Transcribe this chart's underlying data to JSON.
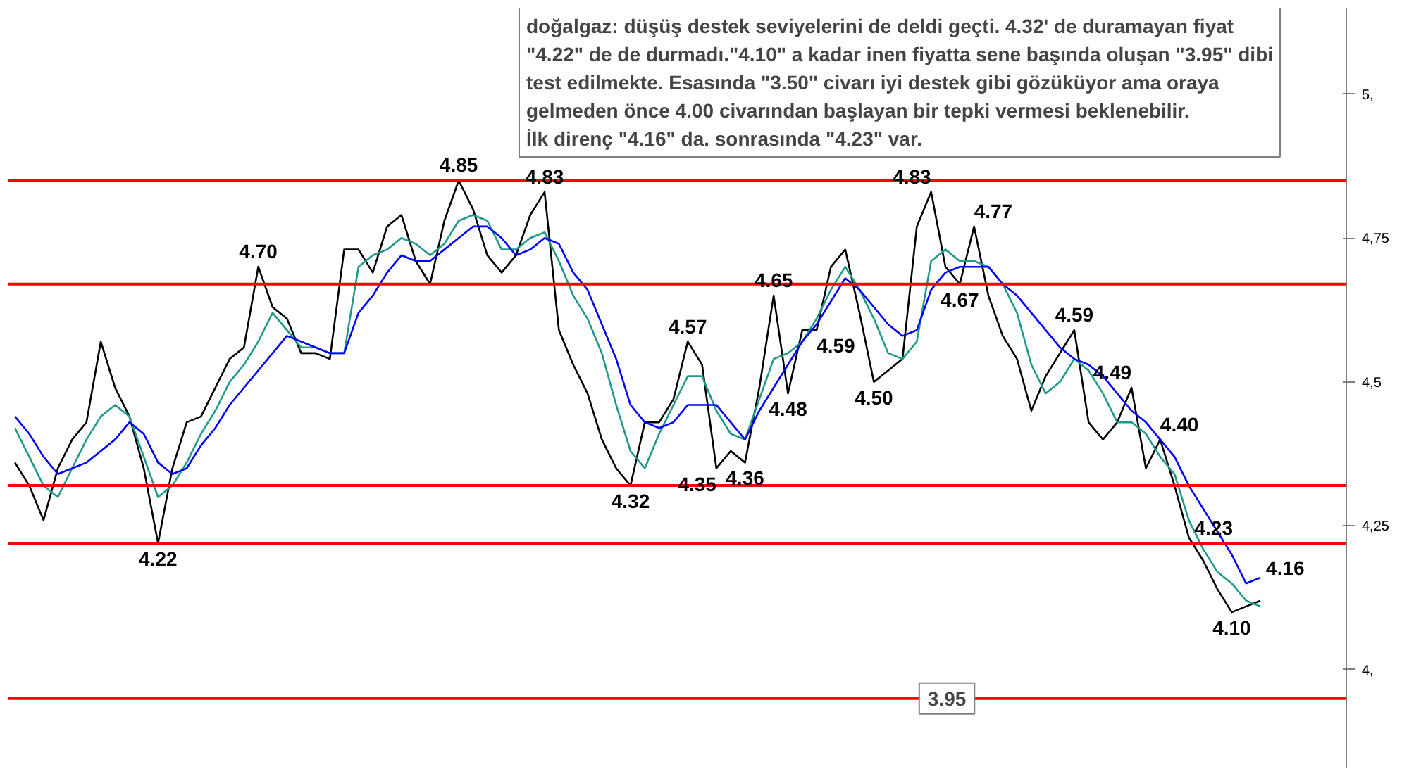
{
  "chart_data": {
    "type": "line",
    "categories": [
      null,
      null,
      null,
      null,
      null,
      null,
      null,
      null,
      null,
      null,
      null,
      null,
      null,
      null,
      null,
      null,
      null,
      null,
      null,
      null,
      null,
      null,
      null,
      null,
      null,
      null,
      null,
      null,
      null,
      null,
      null,
      null,
      null,
      null,
      null,
      null,
      null,
      null,
      null,
      null,
      null,
      null,
      null,
      null,
      null,
      null,
      null,
      null,
      null,
      null,
      null,
      null,
      null,
      null,
      null,
      null,
      null,
      null,
      null,
      null,
      null,
      null,
      null,
      null,
      null,
      null,
      null,
      null,
      null,
      null,
      null,
      null,
      null,
      null,
      null,
      null,
      null,
      null,
      null,
      null,
      null,
      null,
      null,
      null,
      null,
      null,
      null,
      null
    ],
    "series": [
      {
        "color": "#000000",
        "values": [
          4.36,
          4.32,
          4.26,
          4.35,
          4.4,
          4.43,
          4.57,
          4.49,
          4.44,
          4.35,
          4.22,
          4.35,
          4.43,
          4.44,
          4.49,
          4.54,
          4.56,
          4.7,
          4.63,
          4.61,
          4.55,
          4.55,
          4.54,
          4.73,
          4.73,
          4.69,
          4.77,
          4.79,
          4.71,
          4.67,
          4.78,
          4.85,
          4.8,
          4.72,
          4.69,
          4.72,
          4.79,
          4.83,
          4.59,
          4.53,
          4.48,
          4.4,
          4.35,
          4.32,
          4.43,
          4.43,
          4.47,
          4.57,
          4.53,
          4.35,
          4.38,
          4.36,
          4.49,
          4.65,
          4.48,
          4.59,
          4.59,
          4.7,
          4.73,
          4.62,
          4.5,
          4.52,
          4.54,
          4.77,
          4.83,
          4.7,
          4.67,
          4.77,
          4.65,
          4.58,
          4.54,
          4.45,
          4.51,
          4.55,
          4.59,
          4.43,
          4.4,
          4.43,
          4.49,
          4.35,
          4.4,
          4.32,
          4.23,
          4.19,
          4.14,
          4.1,
          4.11,
          4.12
        ],
        "value_labels": [
          null,
          null,
          null,
          null,
          null,
          null,
          null,
          null,
          null,
          null,
          "4.22",
          null,
          null,
          null,
          null,
          null,
          null,
          "4.70",
          null,
          null,
          null,
          null,
          null,
          null,
          null,
          null,
          null,
          null,
          null,
          null,
          null,
          "4.85",
          null,
          null,
          null,
          null,
          null,
          "4.83",
          null,
          null,
          null,
          null,
          null,
          "4.32",
          null,
          null,
          null,
          "4.57",
          null,
          "4.35",
          null,
          "4.36",
          null,
          "4.65",
          "4.48",
          null,
          "4.59",
          null,
          null,
          null,
          "4.50",
          null,
          null,
          null,
          "4.83",
          null,
          "4.67",
          "4.77",
          null,
          null,
          null,
          null,
          null,
          null,
          "4.59",
          null,
          null,
          null,
          "4.49",
          null,
          "4.40",
          null,
          "4.23",
          null,
          null,
          "4.10",
          null,
          null
        ]
      },
      {
        "color": "#1f9a8a",
        "values": [
          4.42,
          4.37,
          4.32,
          4.3,
          4.35,
          4.4,
          4.44,
          4.46,
          4.44,
          4.37,
          4.3,
          4.32,
          4.36,
          4.41,
          4.45,
          4.5,
          4.53,
          4.57,
          4.62,
          4.59,
          4.56,
          4.56,
          4.55,
          4.55,
          4.7,
          4.72,
          4.73,
          4.75,
          4.74,
          4.72,
          4.74,
          4.78,
          4.79,
          4.78,
          4.73,
          4.73,
          4.75,
          4.76,
          4.71,
          4.65,
          4.61,
          4.55,
          4.46,
          4.38,
          4.35,
          4.41,
          4.46,
          4.51,
          4.51,
          4.45,
          4.41,
          4.4,
          4.47,
          4.54,
          4.55,
          4.57,
          4.61,
          4.66,
          4.7,
          4.66,
          4.61,
          4.55,
          4.54,
          4.57,
          4.71,
          4.73,
          4.71,
          4.71,
          4.7,
          4.67,
          4.62,
          4.53,
          4.48,
          4.5,
          4.54,
          4.52,
          4.48,
          4.43,
          4.43,
          4.41,
          4.37,
          4.34,
          4.26,
          4.21,
          4.17,
          4.15,
          4.12,
          4.11
        ]
      },
      {
        "color": "#0000ff",
        "values": [
          4.44,
          4.41,
          4.37,
          4.34,
          4.35,
          4.36,
          4.38,
          4.4,
          4.43,
          4.41,
          4.36,
          4.34,
          4.35,
          4.39,
          4.42,
          4.46,
          4.49,
          4.52,
          4.55,
          4.58,
          4.57,
          4.56,
          4.55,
          4.55,
          4.62,
          4.65,
          4.69,
          4.72,
          4.71,
          4.71,
          4.73,
          4.75,
          4.77,
          4.77,
          4.75,
          4.72,
          4.73,
          4.75,
          4.74,
          4.69,
          4.66,
          4.6,
          4.54,
          4.46,
          4.43,
          4.42,
          4.43,
          4.46,
          4.46,
          4.46,
          4.43,
          4.4,
          4.45,
          4.49,
          4.53,
          4.57,
          4.6,
          4.64,
          4.68,
          4.66,
          4.63,
          4.6,
          4.58,
          4.59,
          4.66,
          4.69,
          4.7,
          4.7,
          4.7,
          4.67,
          4.65,
          4.62,
          4.59,
          4.56,
          4.54,
          4.53,
          4.51,
          4.48,
          4.45,
          4.43,
          4.4,
          4.37,
          4.32,
          4.28,
          4.24,
          4.2,
          4.15,
          4.16
        ],
        "value_labels": [
          null,
          null,
          null,
          null,
          null,
          null,
          null,
          null,
          null,
          null,
          null,
          null,
          null,
          null,
          null,
          null,
          null,
          null,
          null,
          null,
          null,
          null,
          null,
          null,
          null,
          null,
          null,
          null,
          null,
          null,
          null,
          null,
          null,
          null,
          null,
          null,
          null,
          null,
          null,
          null,
          null,
          null,
          null,
          null,
          null,
          null,
          null,
          null,
          null,
          null,
          null,
          null,
          null,
          null,
          null,
          null,
          null,
          null,
          null,
          null,
          null,
          null,
          null,
          null,
          null,
          null,
          null,
          null,
          null,
          null,
          null,
          null,
          null,
          null,
          null,
          null,
          null,
          null,
          null,
          null,
          null,
          null,
          null,
          null,
          null,
          null,
          null,
          "4.16"
        ]
      }
    ],
    "ylim": [
      3.83,
      5.15
    ],
    "yticks": [
      {
        "value": 5,
        "label": "5,"
      },
      {
        "value": 4.75,
        "label": "4,75"
      },
      {
        "value": 4.5,
        "label": "4,5"
      },
      {
        "value": 4.25,
        "label": "4,25"
      },
      {
        "value": 4,
        "label": "4,"
      }
    ],
    "tick_labels": "y",
    "ref_lines": [
      {
        "axis": "y",
        "value": 4.85,
        "color": "#ff0000"
      },
      {
        "axis": "y",
        "value": 4.67,
        "color": "#ff0000"
      },
      {
        "axis": "y",
        "value": 4.32,
        "color": "#ff0000"
      },
      {
        "axis": "y",
        "value": 4.22,
        "color": "#ff0000"
      },
      {
        "axis": "y",
        "value": 3.95,
        "label": "3.95",
        "color": "#ff0000"
      }
    ],
    "annotations": [
      "doğalgaz: düşüş destek seviyelerini de deldi geçti. 4.32' de duramayan fiyat\n\"4.22\" de de durmadı.\"4.10\" a kadar inen fiyatta sene başında oluşan \"3.95\" dibi\ntest edilmekte. Esasında \"3.50\" civarı iyi destek gibi gözüküyor ama oraya\ngelmeden önce 4.00 civarından başlayan bir tepki vermesi beklenebilir.\nİlk direnç \"4.16\" da. sonrasında \"4.23\" var."
    ]
  }
}
